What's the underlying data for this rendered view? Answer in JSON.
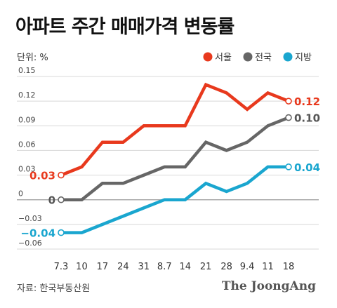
{
  "title": "아파트 주간 매매가격 변동률",
  "unit_label": "단위: %",
  "source": "자료: 한국부동산원",
  "brand": "The JoongAng",
  "chart_data": {
    "type": "line",
    "title": "아파트 주간 매매가격 변동률",
    "ylabel": "단위: %",
    "x": [
      "7.3",
      "10",
      "17",
      "24",
      "31",
      "8.7",
      "14",
      "21",
      "28",
      "9.4",
      "11",
      "18"
    ],
    "ylim": [
      -0.06,
      0.15
    ],
    "yticks": [
      0.15,
      0.12,
      0.09,
      0.06,
      0.03,
      0,
      -0.03,
      -0.06
    ],
    "ytick_labels": [
      "0.15",
      "0.12",
      "0.09",
      "0.06",
      "0.03",
      "0",
      "−0.03",
      "−0.06"
    ],
    "grid": true,
    "legend": "top-right",
    "series": [
      {
        "name": "서울",
        "color": "#e8391d",
        "values": [
          0.03,
          0.04,
          0.07,
          0.07,
          0.09,
          0.09,
          0.09,
          0.14,
          0.13,
          0.11,
          0.13,
          0.12
        ],
        "start_label": "0.03",
        "end_label": "0.12"
      },
      {
        "name": "전국",
        "color": "#666666",
        "values": [
          0,
          0,
          0.02,
          0.02,
          0.03,
          0.04,
          0.04,
          0.07,
          0.06,
          0.07,
          0.09,
          0.1
        ],
        "start_label": "0",
        "end_label": "0.10"
      },
      {
        "name": "지방",
        "color": "#1aa6cf",
        "values": [
          -0.04,
          -0.04,
          -0.03,
          -0.02,
          -0.01,
          0,
          0,
          0.02,
          0.01,
          0.02,
          0.04,
          0.04
        ],
        "start_label": "−0.04",
        "end_label": "0.04"
      }
    ]
  }
}
